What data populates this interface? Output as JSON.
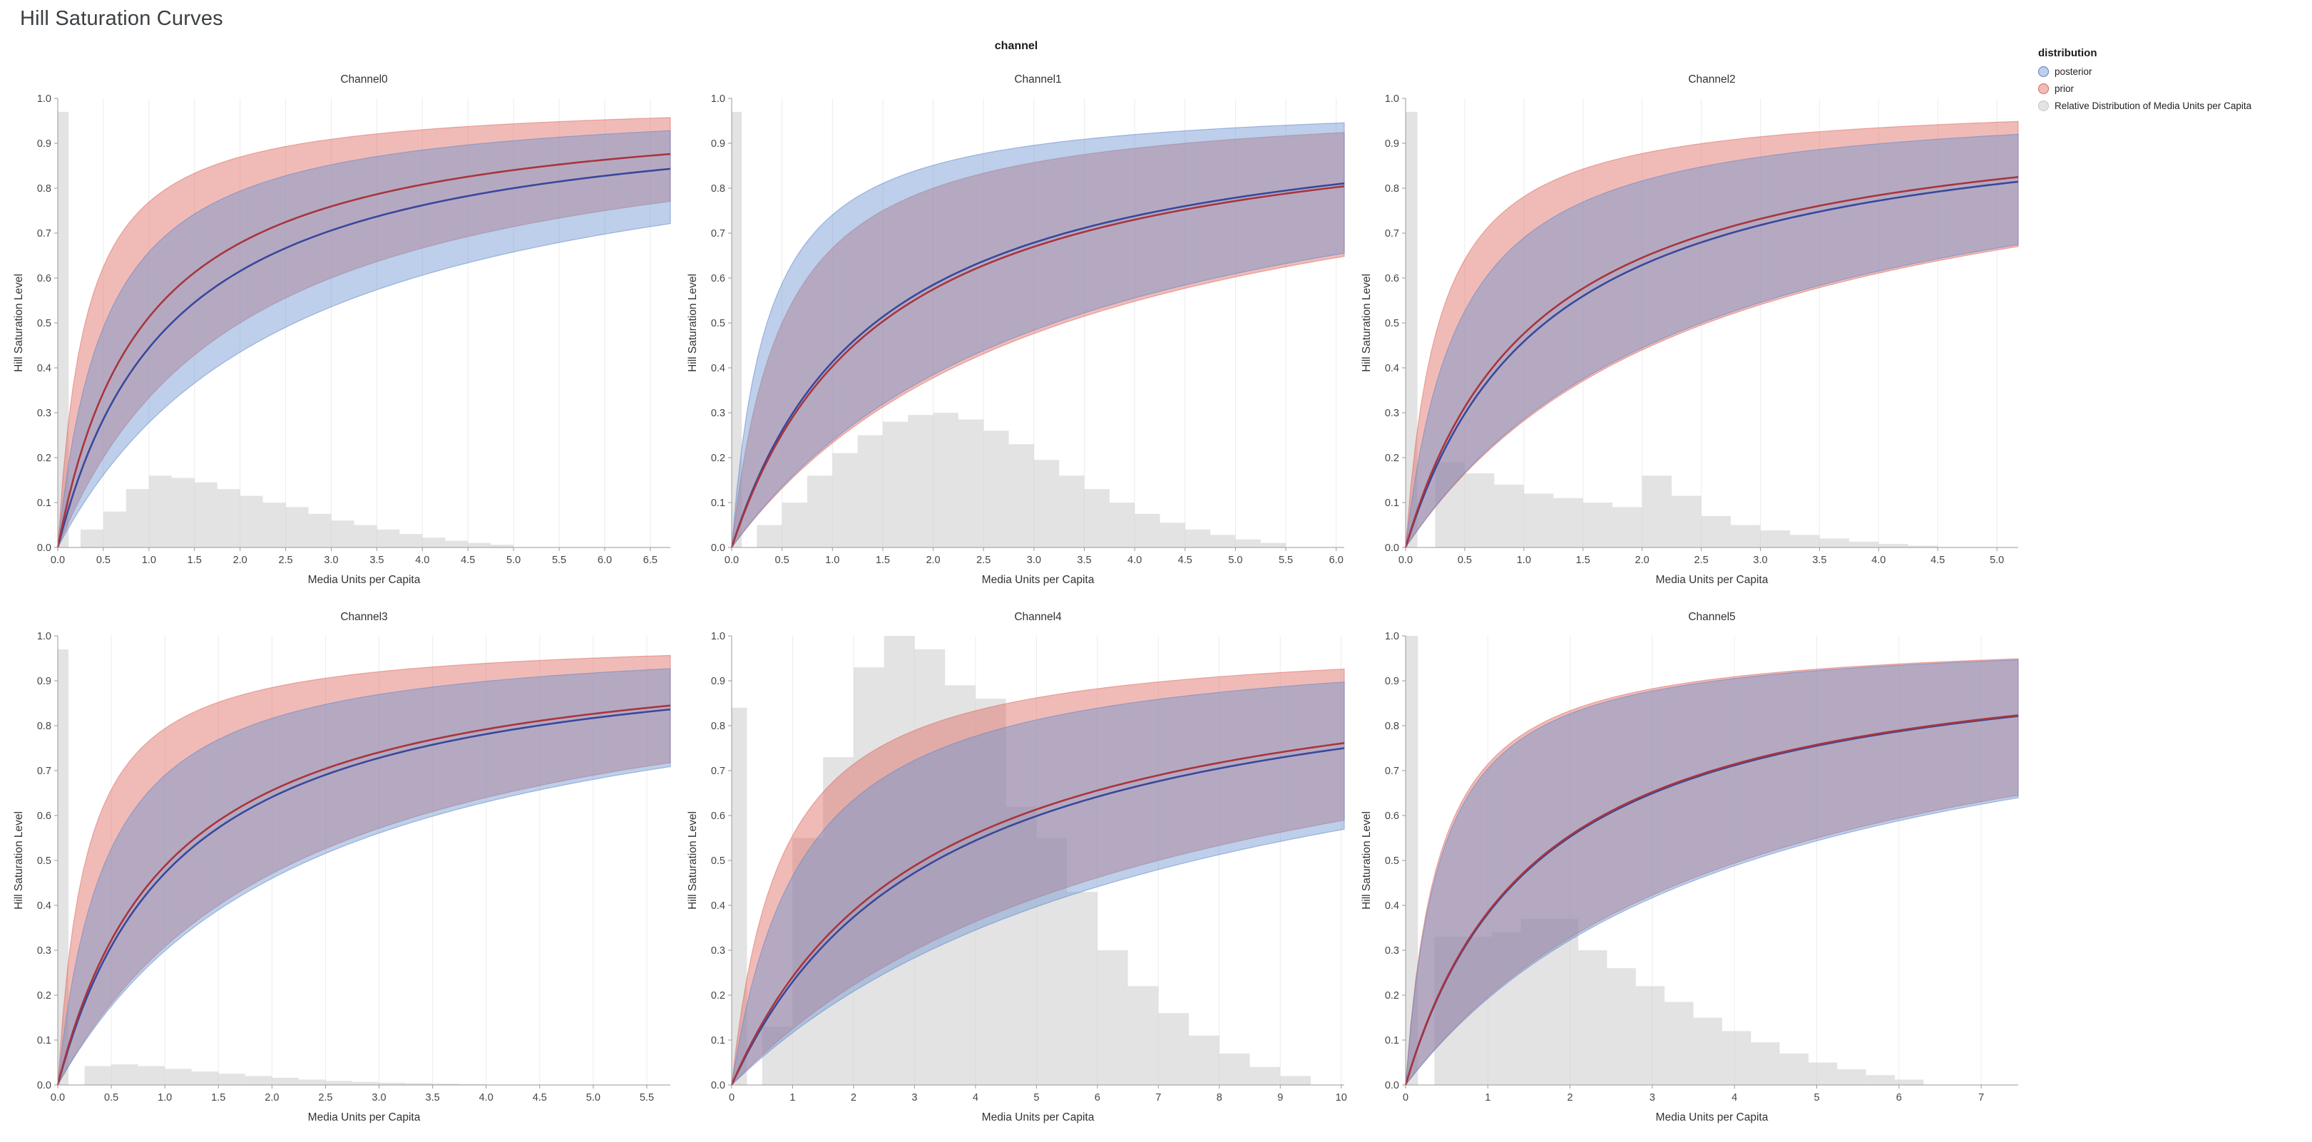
{
  "page_title": "Hill Saturation Curves",
  "facet_title": "channel",
  "legend": {
    "title": "distribution",
    "items": [
      {
        "label": "posterior",
        "fill": "rgba(108,148,208,0.45)",
        "stroke": "#5b7fc7"
      },
      {
        "label": "prior",
        "fill": "rgba(224,112,105,0.48)",
        "stroke": "#d96459"
      },
      {
        "label": "Relative Distribution of Media Units per Capita",
        "fill": "rgba(208,208,208,0.6)",
        "stroke": "#c4c4c4"
      }
    ]
  },
  "colors": {
    "posterior_line": "#38489b",
    "posterior_band": "rgba(108,148,208,0.45)",
    "posterior_edge": "rgba(91,127,199,0.5)",
    "prior_line": "#a8353c",
    "prior_band": "rgba(224,112,105,0.48)",
    "prior_edge": "rgba(217,100,89,0.5)",
    "histogram": "rgba(208,208,208,0.6)",
    "grid": "#ececec",
    "axis": "#9a9a9a",
    "tick_text": "#454545",
    "title_text": "#333333"
  },
  "chart_data": [
    {
      "type": "area",
      "title": "Channel0",
      "xlabel": "Media Units per Capita",
      "ylabel": "Hill Saturation Level",
      "xlim": [
        0,
        6.72
      ],
      "ylim": [
        0,
        1.0
      ],
      "xtick_step": 0.5,
      "xtick_decimals": 1,
      "ytick_step": 0.1,
      "series": [
        {
          "name": "posterior",
          "k_median": 1.25,
          "k_upper": 0.52,
          "k_lower": 2.6
        },
        {
          "name": "prior",
          "k_median": 0.95,
          "k_upper": 0.3,
          "k_lower": 2.0
        }
      ],
      "histogram": {
        "zero_spike": [
          0,
          0.12,
          0.97
        ],
        "bin_start": 0.25,
        "bin_width": 0.25,
        "heights": [
          0.04,
          0.08,
          0.13,
          0.16,
          0.155,
          0.145,
          0.13,
          0.115,
          0.1,
          0.09,
          0.075,
          0.06,
          0.05,
          0.04,
          0.03,
          0.022,
          0.015,
          0.01,
          0.006
        ]
      }
    },
    {
      "type": "area",
      "title": "Channel1",
      "xlabel": "Media Units per Capita",
      "ylabel": "Hill Saturation Level",
      "xlim": [
        0,
        6.08
      ],
      "ylim": [
        0,
        1.0
      ],
      "xtick_step": 0.5,
      "xtick_decimals": 1,
      "ytick_step": 0.1,
      "series": [
        {
          "name": "posterior",
          "k_median": 1.42,
          "k_upper": 0.35,
          "k_lower": 3.2
        },
        {
          "name": "prior",
          "k_median": 1.48,
          "k_upper": 0.5,
          "k_lower": 3.3
        }
      ],
      "histogram": {
        "zero_spike": [
          0,
          0.1,
          0.97
        ],
        "bin_start": 0.25,
        "bin_width": 0.25,
        "heights": [
          0.05,
          0.1,
          0.16,
          0.21,
          0.25,
          0.28,
          0.295,
          0.3,
          0.285,
          0.26,
          0.23,
          0.195,
          0.16,
          0.13,
          0.1,
          0.075,
          0.055,
          0.04,
          0.028,
          0.018,
          0.01
        ]
      }
    },
    {
      "type": "area",
      "title": "Channel2",
      "xlabel": "Media Units per Capita",
      "ylabel": "Hill Saturation Level",
      "xlim": [
        0,
        5.18
      ],
      "ylim": [
        0,
        1.0
      ],
      "xtick_step": 0.5,
      "xtick_decimals": 1,
      "ytick_step": 0.1,
      "series": [
        {
          "name": "posterior",
          "k_median": 1.18,
          "k_upper": 0.45,
          "k_lower": 2.5
        },
        {
          "name": "prior",
          "k_median": 1.1,
          "k_upper": 0.28,
          "k_lower": 2.55
        }
      ],
      "histogram": {
        "zero_spike": [
          0,
          0.1,
          0.97
        ],
        "bin_start": 0.25,
        "bin_width": 0.25,
        "heights": [
          0.19,
          0.165,
          0.14,
          0.12,
          0.11,
          0.1,
          0.09,
          0.16,
          0.115,
          0.07,
          0.05,
          0.038,
          0.028,
          0.02,
          0.013,
          0.008,
          0.004
        ]
      }
    },
    {
      "type": "area",
      "title": "Channel3",
      "xlabel": "Media Units per Capita",
      "ylabel": "Hill Saturation Level",
      "xlim": [
        0,
        5.72
      ],
      "ylim": [
        0,
        1.0
      ],
      "xtick_step": 0.5,
      "xtick_decimals": 1,
      "ytick_step": 0.1,
      "series": [
        {
          "name": "posterior",
          "k_median": 1.12,
          "k_upper": 0.45,
          "k_lower": 2.35
        },
        {
          "name": "prior",
          "k_median": 1.05,
          "k_upper": 0.26,
          "k_lower": 2.25
        }
      ],
      "histogram": {
        "zero_spike": [
          0,
          0.1,
          0.97
        ],
        "bin_start": 0.25,
        "bin_width": 0.25,
        "heights": [
          0.042,
          0.046,
          0.042,
          0.036,
          0.03,
          0.025,
          0.02,
          0.016,
          0.012,
          0.009,
          0.007,
          0.005,
          0.004,
          0.003,
          0.002
        ]
      }
    },
    {
      "type": "area",
      "title": "Channel4",
      "xlabel": "Media Units per Capita",
      "ylabel": "Hill Saturation Level",
      "xlim": [
        0,
        10.05
      ],
      "ylim": [
        0,
        1.0
      ],
      "xtick_step": 1,
      "xtick_decimals": 0,
      "ytick_step": 0.1,
      "series": [
        {
          "name": "posterior",
          "k_median": 3.35,
          "k_upper": 1.15,
          "k_lower": 7.6
        },
        {
          "name": "prior",
          "k_median": 3.15,
          "k_upper": 0.8,
          "k_lower": 7.0
        }
      ],
      "histogram": {
        "zero_spike": [
          0,
          0.25,
          0.84
        ],
        "bin_start": 0.5,
        "bin_width": 0.5,
        "heights": [
          0.13,
          0.55,
          0.73,
          0.93,
          1.0,
          0.97,
          0.89,
          0.86,
          0.62,
          0.55,
          0.43,
          0.3,
          0.22,
          0.16,
          0.11,
          0.07,
          0.04,
          0.02
        ]
      }
    },
    {
      "type": "area",
      "title": "Channel5",
      "xlabel": "Media Units per Capita",
      "ylabel": "Hill Saturation Level",
      "xlim": [
        0,
        7.45
      ],
      "ylim": [
        0,
        1.0
      ],
      "xtick_step": 1,
      "xtick_decimals": 0,
      "ytick_step": 0.1,
      "series": [
        {
          "name": "posterior",
          "k_median": 1.62,
          "k_upper": 0.42,
          "k_lower": 4.2
        },
        {
          "name": "prior",
          "k_median": 1.6,
          "k_upper": 0.4,
          "k_lower": 4.1
        }
      ],
      "histogram": {
        "zero_spike": [
          0,
          0.15,
          1.0
        ],
        "bin_start": 0.35,
        "bin_width": 0.35,
        "heights": [
          0.33,
          0.33,
          0.34,
          0.37,
          0.37,
          0.3,
          0.26,
          0.22,
          0.185,
          0.15,
          0.12,
          0.095,
          0.07,
          0.05,
          0.035,
          0.022,
          0.012
        ]
      }
    }
  ]
}
